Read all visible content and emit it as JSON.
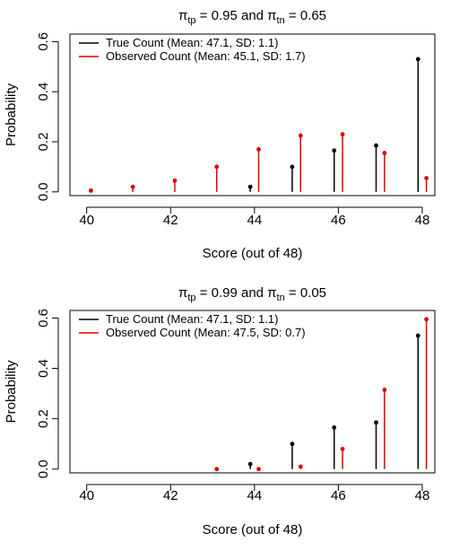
{
  "colors": {
    "true": "#000000",
    "observed": "#dd0000"
  },
  "chart_data": [
    {
      "type": "lollipop",
      "title": {
        "a": "π",
        "a_sub": "tp",
        "b": " = 0.95 and ",
        "c": "π",
        "c_sub": "tn",
        "d": " = 0.65"
      },
      "xlabel": "Score (out of 48)",
      "ylabel": "Probability",
      "xlim": [
        39.6,
        48.3
      ],
      "ylim": [
        -0.015,
        0.63
      ],
      "xticks": [
        "40",
        "42",
        "44",
        "46",
        "48"
      ],
      "yticks": [
        "0.0",
        "0.2",
        "0.4",
        "0.6"
      ],
      "legend_position": "top-left",
      "series": [
        {
          "name": "True Count (Mean: 47.1, SD: 1.1)",
          "color": "true",
          "x": [
            43.9,
            44.9,
            45.9,
            46.9,
            47.9
          ],
          "y": [
            0.02,
            0.1,
            0.165,
            0.185,
            0.53
          ]
        },
        {
          "name": "Observed Count (Mean: 45.1, SD: 1.7)",
          "color": "observed",
          "x": [
            40.1,
            41.1,
            42.1,
            43.1,
            44.1,
            45.1,
            46.1,
            47.1,
            48.1
          ],
          "y": [
            0.005,
            0.02,
            0.045,
            0.1,
            0.17,
            0.225,
            0.23,
            0.155,
            0.055
          ]
        }
      ]
    },
    {
      "type": "lollipop",
      "title": {
        "a": "π",
        "a_sub": "tp",
        "b": " = 0.99 and ",
        "c": "π",
        "c_sub": "tn",
        "d": " = 0.05"
      },
      "xlabel": "Score (out of 48)",
      "ylabel": "Probability",
      "xlim": [
        39.6,
        48.3
      ],
      "ylim": [
        -0.015,
        0.63
      ],
      "xticks": [
        "40",
        "42",
        "44",
        "46",
        "48"
      ],
      "yticks": [
        "0.0",
        "0.2",
        "0.4",
        "0.6"
      ],
      "legend_position": "top-left",
      "series": [
        {
          "name": "True Count (Mean: 47.1, SD: 1.1)",
          "color": "true",
          "x": [
            43.9,
            44.9,
            45.9,
            46.9,
            47.9
          ],
          "y": [
            0.02,
            0.1,
            0.165,
            0.185,
            0.53
          ]
        },
        {
          "name": "Observed Count (Mean: 47.5, SD: 0.7)",
          "color": "observed",
          "x": [
            43.1,
            44.1,
            45.1,
            46.1,
            47.1,
            48.1
          ],
          "y": [
            0.0,
            0.0,
            0.01,
            0.08,
            0.315,
            0.595
          ]
        }
      ]
    }
  ]
}
